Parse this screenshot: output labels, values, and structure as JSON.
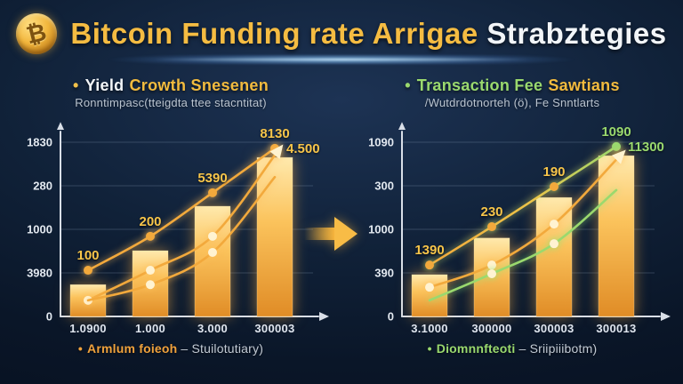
{
  "title": {
    "coin_symbol": "₿",
    "gold_text": "Bitcoin Funding rate Arrigae",
    "white_text": "Strabztegies"
  },
  "colors": {
    "gold": "#f5bc42",
    "orange": "#f2a93c",
    "green": "#9ad96e",
    "white_dot": "#fff3d2",
    "label_gold": "#f7c54a",
    "axis": "#d9dfe8",
    "muted_text": "#b9c3cf"
  },
  "sections": {
    "left": {
      "bullet": "•",
      "title_lead": "Yield",
      "title_accent": "Crowth Snesenen",
      "subtitle": "Ronntimpasc(tteigdta ttee stacntitat)",
      "legend_marker": "•",
      "legend_main": "Armlum foieoh",
      "legend_note": "– Stuilotutiary)"
    },
    "right": {
      "bullet": "•",
      "title_lead": "Transaction Fee",
      "title_accent": "Sawtians",
      "subtitle": "/Wutdrdotnorteh (ö), Fe Snntlarts",
      "legend_marker": "•",
      "legend_main": "Diomnnfteoti",
      "legend_note": "– Sriipiiibotm)"
    }
  },
  "chart_data": [
    {
      "id": "chart-left",
      "type": "bar",
      "title": "Yield Crowth Snesenen",
      "xlabel": "",
      "ylabel": "",
      "grid": true,
      "ylim": [
        0,
        4
      ],
      "categories": [
        "1.0900",
        "1.000",
        "3.000",
        "300003"
      ],
      "y_ticks": [
        "0",
        "3980",
        "1000",
        "280",
        "1830"
      ],
      "bars": [
        0.73,
        1.51,
        2.53,
        3.65
      ],
      "lines": [
        {
          "name": "upper-trend",
          "color": "orange",
          "units": [
            1.06,
            1.84,
            2.84,
            3.86
          ],
          "dots": [
            "orange",
            "orange",
            "orange",
            "orange"
          ],
          "point_labels": [
            "100",
            "200",
            "5390",
            "8130"
          ],
          "end_label": "4.500",
          "end_label_color": "label_gold"
        },
        {
          "name": "mid-trend",
          "color": "orange",
          "units": [
            0.37,
            1.06,
            1.84,
            3.7
          ],
          "dots": [
            "white_dot",
            "white_dot",
            "white_dot",
            null
          ],
          "arrow_end": true
        },
        {
          "name": "low-trend",
          "color": "orange",
          "units": [
            0.37,
            0.73,
            1.47,
            3.2
          ],
          "dots": [
            null,
            "white_dot",
            "white_dot",
            null
          ]
        }
      ]
    },
    {
      "id": "chart-right",
      "type": "bar",
      "title": "Transaction Fee Sawtians",
      "xlabel": "",
      "ylabel": "",
      "grid": true,
      "ylim": [
        0,
        4
      ],
      "categories": [
        "3.1000",
        "300000",
        "300003",
        "300013"
      ],
      "y_ticks": [
        "0",
        "390",
        "1000",
        "300",
        "1090"
      ],
      "bars": [
        0.96,
        1.8,
        2.73,
        3.69
      ],
      "lines": [
        {
          "name": "upper-trend",
          "color": "yellowgreen",
          "units": [
            1.18,
            2.06,
            2.98,
            3.9
          ],
          "dots": [
            "orange",
            "orange",
            "orange",
            "green"
          ],
          "point_labels": [
            "1390",
            "230",
            "190",
            "1090"
          ],
          "point_label_colors": [
            "label_gold",
            "label_gold",
            "label_gold",
            "green"
          ],
          "end_label": "11300",
          "end_label_color": "green"
        },
        {
          "name": "mid-trend",
          "color": "orange",
          "units": [
            0.67,
            1.18,
            2.12,
            3.6
          ],
          "dots": [
            "white_dot",
            "white_dot",
            "white_dot",
            null
          ],
          "arrow_end": true
        },
        {
          "name": "low-trend",
          "color": "green",
          "units": [
            0.37,
            0.98,
            1.67,
            2.9
          ],
          "dots": [
            null,
            "white_dot",
            "white_dot",
            null
          ]
        }
      ]
    }
  ]
}
